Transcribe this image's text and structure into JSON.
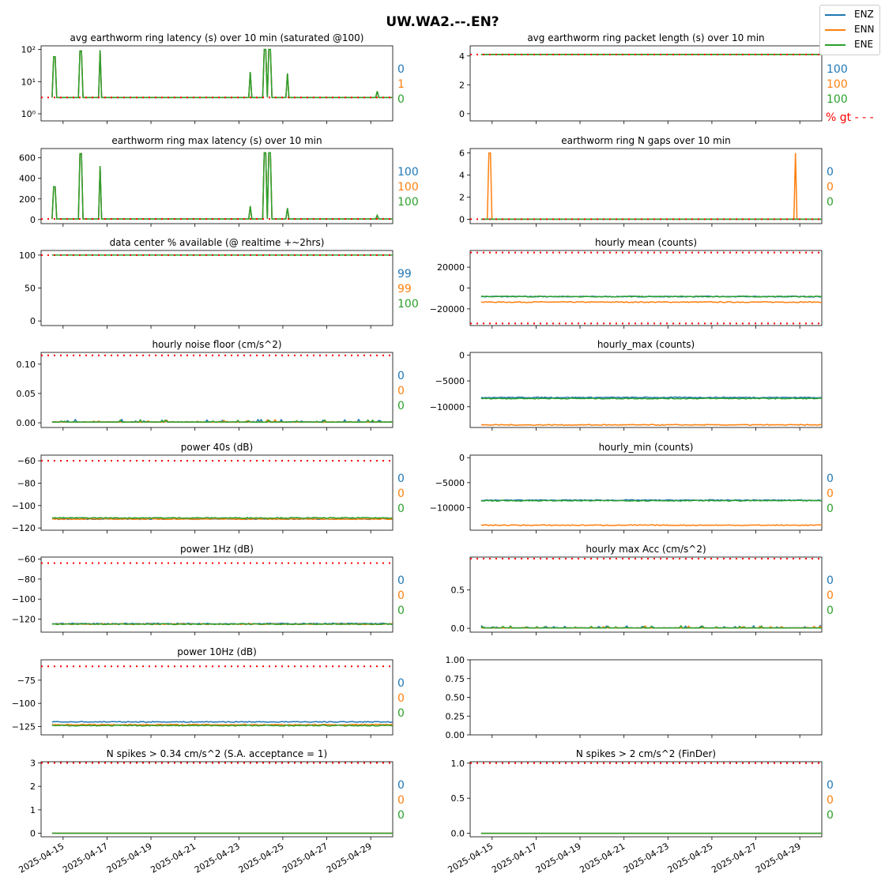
{
  "title": "UW.WA2.--.EN?",
  "legend": [
    {
      "name": "ENZ",
      "color": "#1f77b4"
    },
    {
      "name": "ENN",
      "color": "#ff7f0e"
    },
    {
      "name": "ENE",
      "color": "#2ca02c"
    }
  ],
  "threshold_color": "#ff0000",
  "x_tick_labels": [
    "2025-04-15",
    "2025-04-17",
    "2025-04-19",
    "2025-04-21",
    "2025-04-23",
    "2025-04-25",
    "2025-04-27",
    "2025-04-29"
  ],
  "percent_gt_label": "% gt - - -",
  "chart_data": [
    {
      "type": "line",
      "title": "avg earthworm ring latency (s)   over 10 min (saturated @100)",
      "yscale": "log",
      "ylim": [
        0.6,
        130
      ],
      "y_ticks": [
        1,
        10,
        100
      ],
      "y_tick_labels": [
        "10⁰",
        "10¹",
        "10²"
      ],
      "threshold": 3.2,
      "base": 3.2,
      "spikes": [
        [
          14.6,
          60
        ],
        [
          15.8,
          90
        ],
        [
          16.7,
          95
        ],
        [
          23.5,
          20
        ],
        [
          24.2,
          100
        ],
        [
          24.4,
          100
        ],
        [
          25.2,
          18
        ],
        [
          29.3,
          5
        ]
      ],
      "stats": [
        "0",
        "1",
        "0"
      ]
    },
    {
      "type": "line",
      "title": "avg earthworm ring packet length (s)   over 10 min",
      "ylim": [
        -0.5,
        4.7
      ],
      "y_ticks": [
        0,
        2,
        4
      ],
      "threshold": 4.1,
      "base": 4.1,
      "spikes": [],
      "stats": [
        "100",
        "100",
        "100"
      ]
    },
    {
      "type": "line",
      "title": "earthworm ring max latency (s)   over 10 min",
      "ylim": [
        -40,
        690
      ],
      "y_ticks": [
        0,
        200,
        400,
        600
      ],
      "threshold": 5,
      "base": 5,
      "spikes": [
        [
          14.6,
          320
        ],
        [
          15.8,
          640
        ],
        [
          16.7,
          520
        ],
        [
          23.5,
          130
        ],
        [
          24.2,
          650
        ],
        [
          24.4,
          650
        ],
        [
          25.2,
          110
        ],
        [
          29.3,
          40
        ]
      ],
      "stats": [
        "100",
        "100",
        "100"
      ]
    },
    {
      "type": "line",
      "title": "earthworm ring N gaps   over 10 min",
      "ylim": [
        -0.4,
        6.4
      ],
      "y_ticks": [
        0,
        2,
        4,
        6
      ],
      "threshold": 0,
      "base": 0,
      "spikes": [],
      "gap_spikes": [
        [
          14.9,
          6
        ],
        [
          28.8,
          6
        ]
      ],
      "stats": [
        "0",
        "0",
        "0"
      ]
    },
    {
      "type": "line",
      "title": "data center % available (@ realtime +~2hrs)",
      "ylim": [
        -7,
        107
      ],
      "y_ticks": [
        0,
        50,
        100
      ],
      "threshold": 100,
      "base": 100,
      "spikes": [],
      "stats": [
        "99",
        "99",
        "100"
      ]
    },
    {
      "type": "line",
      "title": "hourly mean (counts)",
      "ylim": [
        -36000,
        36000
      ],
      "y_ticks": [
        -20000,
        0,
        20000
      ],
      "y_tick_labels": [
        "−20000",
        "0",
        "20000"
      ],
      "threshold": [
        34000,
        -34000
      ],
      "series_levels": {
        "ENZ": -8200,
        "ENN": -13500,
        "ENE": -8200
      },
      "stats": []
    },
    {
      "type": "line",
      "title": "hourly noise floor (cm/s^2)",
      "ylim": [
        -0.008,
        0.12
      ],
      "y_ticks": [
        0.0,
        0.05,
        0.1
      ],
      "y_tick_labels": [
        "0.00",
        "0.05",
        "0.10"
      ],
      "threshold": 0.115,
      "base": 0.001,
      "spikes": [],
      "noise": 0.004,
      "stats": [
        "0",
        "0",
        "0"
      ]
    },
    {
      "type": "line",
      "title": "hourly_max (counts)",
      "ylim": [
        -14000,
        500
      ],
      "y_ticks": [
        -10000,
        -5000,
        0
      ],
      "y_tick_labels": [
        "−10000",
        "−5000",
        "0"
      ],
      "series_levels": {
        "ENZ": -8200,
        "ENN": -13500,
        "ENE": -8400
      },
      "stats": []
    },
    {
      "type": "line",
      "title": "power 40s (dB)",
      "ylim": [
        -122,
        -55
      ],
      "y_ticks": [
        -120,
        -100,
        -80,
        -60
      ],
      "y_tick_labels": [
        "−120",
        "−100",
        "−80",
        "−60"
      ],
      "threshold": -60,
      "series_levels": {
        "ENZ": -112,
        "ENN": -112,
        "ENE": -111
      },
      "stats": [
        "0",
        "0",
        "0"
      ]
    },
    {
      "type": "line",
      "title": "hourly_min (counts)",
      "ylim": [
        -14500,
        500
      ],
      "y_ticks": [
        -10000,
        -5000,
        0
      ],
      "y_tick_labels": [
        "−10000",
        "−5000",
        "0"
      ],
      "series_levels": {
        "ENZ": -8500,
        "ENN": -13500,
        "ENE": -8600
      },
      "stats": [
        "0",
        "0",
        "0"
      ]
    },
    {
      "type": "line",
      "title": "power 1Hz (dB)",
      "ylim": [
        -133,
        -58
      ],
      "y_ticks": [
        -120,
        -100,
        -80,
        -60
      ],
      "y_tick_labels": [
        "−120",
        "−100",
        "−80",
        "−60"
      ],
      "threshold": -64,
      "series_levels": {
        "ENZ": -124.5,
        "ENN": -125,
        "ENE": -125
      },
      "stats": [
        "0",
        "0",
        "0"
      ]
    },
    {
      "type": "line",
      "title": "hourly max Acc (cm/s^2)",
      "ylim": [
        -0.05,
        0.93
      ],
      "y_ticks": [
        0.0,
        0.5
      ],
      "y_tick_labels": [
        "0.0",
        "0.5"
      ],
      "threshold": 0.91,
      "base": 0.003,
      "noise": 0.03,
      "stats": [
        "0",
        "0",
        "0"
      ]
    },
    {
      "type": "line",
      "title": "power 10Hz (dB)",
      "ylim": [
        -134,
        -53
      ],
      "y_ticks": [
        -125,
        -100,
        -75
      ],
      "y_tick_labels": [
        "−125",
        "−100",
        "−75"
      ],
      "threshold": -60,
      "series_levels": {
        "ENZ": -120,
        "ENN": -123,
        "ENE": -124
      },
      "stats": [
        "0",
        "0",
        "0"
      ]
    },
    {
      "type": "empty",
      "title": "",
      "ylim": [
        0,
        1
      ],
      "y_ticks": [
        0,
        0.25,
        0.5,
        0.75,
        1.0
      ],
      "y_tick_labels": [
        "0.00",
        "0.25",
        "0.50",
        "0.75",
        "1.00"
      ],
      "stats": []
    },
    {
      "type": "line",
      "title": "N spikes > 0.34 cm/s^2 (S.A. acceptance = 1)",
      "ylim": [
        -0.15,
        3.05
      ],
      "y_ticks": [
        0,
        1,
        2,
        3
      ],
      "threshold": 3,
      "base": 0,
      "spikes": [],
      "stats": [
        "0",
        "0",
        "0"
      ]
    },
    {
      "type": "line",
      "title": "N spikes > 2 cm/s^2 (FinDer)",
      "ylim": [
        -0.05,
        1.02
      ],
      "y_ticks": [
        0.0,
        0.5,
        1.0
      ],
      "y_tick_labels": [
        "0.0",
        "0.5",
        "1.0"
      ],
      "threshold": 1,
      "base": 0,
      "spikes": [],
      "stats": [
        "0",
        "0",
        "0"
      ]
    }
  ]
}
